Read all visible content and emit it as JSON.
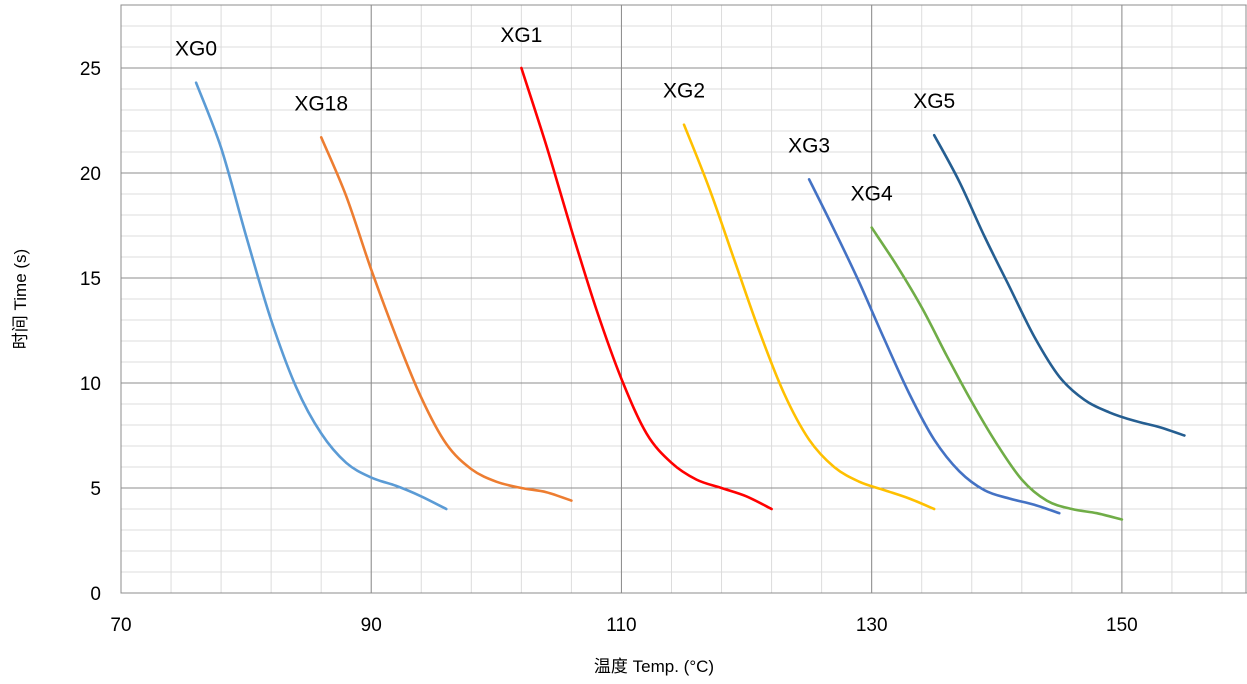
{
  "chart_data": {
    "type": "line",
    "title": "",
    "xlabel": "温度 Temp. (°C)",
    "ylabel": "时间 Time (s)",
    "xlim": [
      70,
      160
    ],
    "ylim": [
      0,
      28
    ],
    "x_ticks": [
      70,
      90,
      110,
      130,
      150
    ],
    "y_ticks": [
      0,
      5,
      10,
      15,
      20,
      25
    ],
    "x_minor_step": 4,
    "y_minor_step": 1,
    "grid": true,
    "legend": "none",
    "series": [
      {
        "name": "XG0",
        "color": "#5b9bd5",
        "x": [
          76,
          78,
          80,
          82,
          84,
          86,
          88,
          90,
          92,
          94,
          96
        ],
        "y": [
          24.3,
          21.2,
          17.0,
          13.0,
          9.8,
          7.6,
          6.2,
          5.5,
          5.1,
          4.6,
          4.0
        ]
      },
      {
        "name": "XG18",
        "color": "#ed7d31",
        "x": [
          86,
          88,
          90,
          92,
          94,
          96,
          98,
          100,
          102,
          104,
          106
        ],
        "y": [
          21.7,
          18.9,
          15.4,
          12.2,
          9.3,
          7.1,
          5.9,
          5.3,
          5.0,
          4.8,
          4.4
        ]
      },
      {
        "name": "XG1",
        "color": "#ff0000",
        "x": [
          102,
          104,
          106,
          108,
          110,
          112,
          114,
          116,
          118,
          120,
          122
        ],
        "y": [
          25.0,
          21.3,
          17.3,
          13.5,
          10.2,
          7.6,
          6.2,
          5.4,
          5.0,
          4.6,
          4.0
        ]
      },
      {
        "name": "XG2",
        "color": "#ffc000",
        "x": [
          115,
          117,
          119,
          121,
          123,
          125,
          127,
          129,
          131,
          133,
          135
        ],
        "y": [
          22.3,
          19.3,
          15.9,
          12.5,
          9.5,
          7.3,
          6.0,
          5.3,
          4.9,
          4.5,
          4.0
        ]
      },
      {
        "name": "XG3",
        "color": "#4472c4",
        "x": [
          125,
          127,
          129,
          131,
          133,
          135,
          137,
          139,
          141,
          143,
          145
        ],
        "y": [
          19.7,
          17.3,
          14.8,
          12.1,
          9.5,
          7.3,
          5.8,
          4.9,
          4.5,
          4.2,
          3.8
        ]
      },
      {
        "name": "XG4",
        "color": "#70ad47",
        "x": [
          130,
          132,
          134,
          136,
          138,
          140,
          142,
          144,
          146,
          148,
          150
        ],
        "y": [
          17.4,
          15.6,
          13.6,
          11.3,
          9.1,
          7.1,
          5.4,
          4.4,
          4.0,
          3.8,
          3.5
        ]
      },
      {
        "name": "XG5",
        "color": "#255e91",
        "x": [
          135,
          137,
          139,
          141,
          143,
          145,
          147,
          149,
          151,
          153,
          155
        ],
        "y": [
          21.8,
          19.6,
          17.0,
          14.6,
          12.2,
          10.3,
          9.2,
          8.6,
          8.2,
          7.9,
          7.5
        ]
      }
    ],
    "annotations": [
      {
        "text": "XG0",
        "series": "XG0"
      },
      {
        "text": "XG18",
        "series": "XG18"
      },
      {
        "text": "XG1",
        "series": "XG1"
      },
      {
        "text": "XG2",
        "series": "XG2"
      },
      {
        "text": "XG3",
        "series": "XG3"
      },
      {
        "text": "XG4",
        "series": "XG4"
      },
      {
        "text": "XG5",
        "series": "XG5"
      }
    ]
  }
}
